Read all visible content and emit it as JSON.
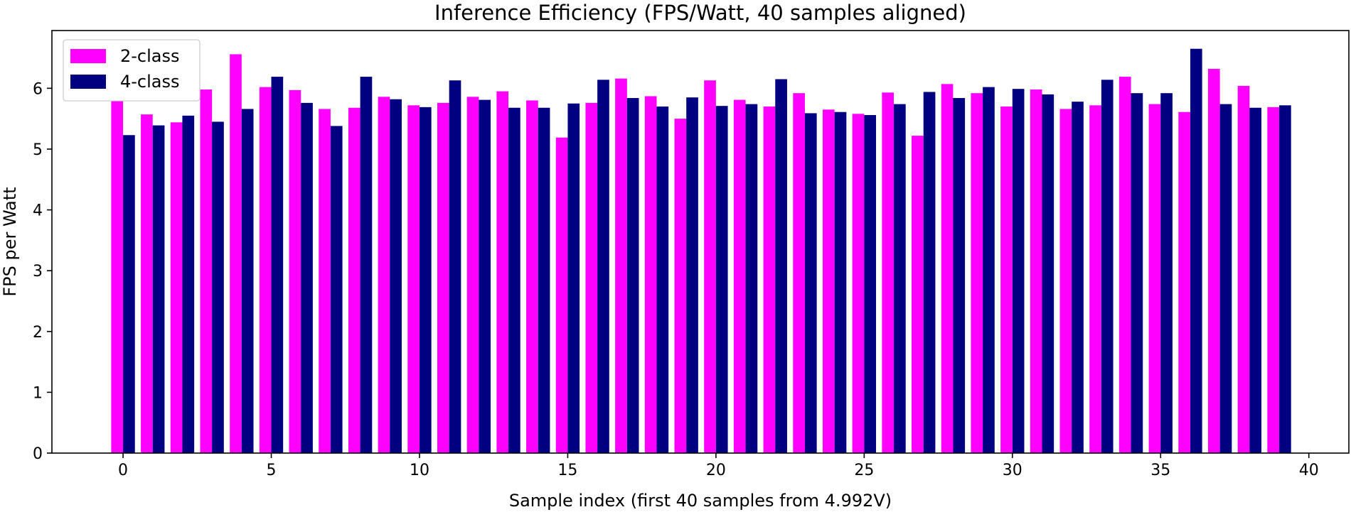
{
  "chart_data": {
    "type": "bar",
    "title": "Inference Efficiency (FPS/Watt, 40 samples aligned)",
    "xlabel": "Sample index (first 40 samples from 4.992V)",
    "ylabel": "FPS per Watt",
    "xlim": [
      -2.4,
      41.35
    ],
    "ylim": [
      0,
      6.95
    ],
    "x_ticks": [
      0,
      5,
      10,
      15,
      20,
      25,
      30,
      35,
      40
    ],
    "y_ticks": [
      0,
      1,
      2,
      3,
      4,
      5,
      6
    ],
    "grid": false,
    "legend_position": "top-left",
    "bar_width": 0.4,
    "categories": [
      0,
      1,
      2,
      3,
      4,
      5,
      6,
      7,
      8,
      9,
      10,
      11,
      12,
      13,
      14,
      15,
      16,
      17,
      18,
      19,
      20,
      21,
      22,
      23,
      24,
      25,
      26,
      27,
      28,
      29,
      30,
      31,
      32,
      33,
      34,
      35,
      36,
      37,
      38,
      39
    ],
    "series": [
      {
        "name": "2-class",
        "color": "#ff00ff",
        "offset": -0.2,
        "values": [
          5.8,
          5.57,
          5.44,
          5.98,
          6.56,
          6.02,
          5.97,
          5.66,
          5.68,
          5.86,
          5.72,
          5.76,
          5.86,
          5.95,
          5.8,
          5.19,
          5.76,
          6.16,
          5.87,
          5.5,
          6.13,
          5.81,
          5.7,
          5.92,
          5.65,
          5.58,
          5.93,
          5.22,
          6.07,
          5.92,
          5.7,
          5.98,
          5.66,
          5.72,
          6.19,
          5.74,
          5.61,
          6.32,
          6.04,
          5.69
        ]
      },
      {
        "name": "4-class",
        "color": "#000080",
        "offset": 0.2,
        "values": [
          5.23,
          5.39,
          5.55,
          5.45,
          5.66,
          6.19,
          5.76,
          5.38,
          6.19,
          5.82,
          5.69,
          6.13,
          5.81,
          5.68,
          5.68,
          5.75,
          6.14,
          5.84,
          5.7,
          5.85,
          5.71,
          5.74,
          6.15,
          5.59,
          5.61,
          5.56,
          5.74,
          5.94,
          5.84,
          6.02,
          5.99,
          5.9,
          5.78,
          6.14,
          5.92,
          5.92,
          6.65,
          5.74,
          5.68,
          5.72
        ]
      }
    ]
  }
}
